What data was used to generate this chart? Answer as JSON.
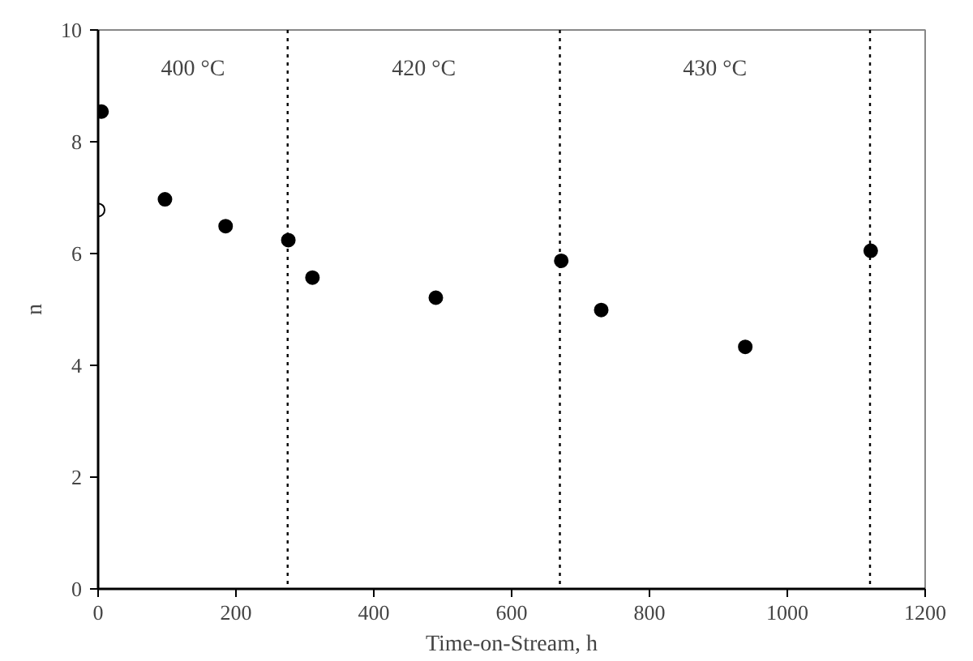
{
  "chart_data": {
    "type": "scatter",
    "xlabel": "Time-on-Stream, h",
    "ylabel": "n",
    "series": [
      {
        "color": "#000000",
        "marker": "circle",
        "x": [
          5,
          97,
          185,
          276,
          311,
          490,
          672,
          730,
          939,
          1121
        ],
        "values": [
          8.54,
          6.97,
          6.49,
          6.24,
          5.57,
          5.21,
          5.87,
          4.99,
          4.33,
          6.05
        ]
      },
      {
        "color": "#ffffff",
        "marker": "circle",
        "x": [
          0
        ],
        "values": [
          6.78
        ]
      }
    ],
    "xlim": [
      0,
      1200
    ],
    "xticks": [
      0,
      200,
      400,
      600,
      800,
      1000,
      1200
    ],
    "ylim": [
      0,
      10
    ],
    "yticks": [
      0,
      2,
      4,
      6,
      8,
      10
    ],
    "grid": false,
    "ref_lines": [
      {
        "axis": "x",
        "value": 275,
        "line_style": "dotted",
        "color": "#000000"
      },
      {
        "axis": "x",
        "value": 670,
        "line_style": "dotted",
        "color": "#000000"
      },
      {
        "axis": "x",
        "value": 1120,
        "line_style": "dotted",
        "color": "#000000"
      }
    ],
    "annotations": [
      "400 °C",
      "420 °C",
      "430 °C"
    ]
  }
}
